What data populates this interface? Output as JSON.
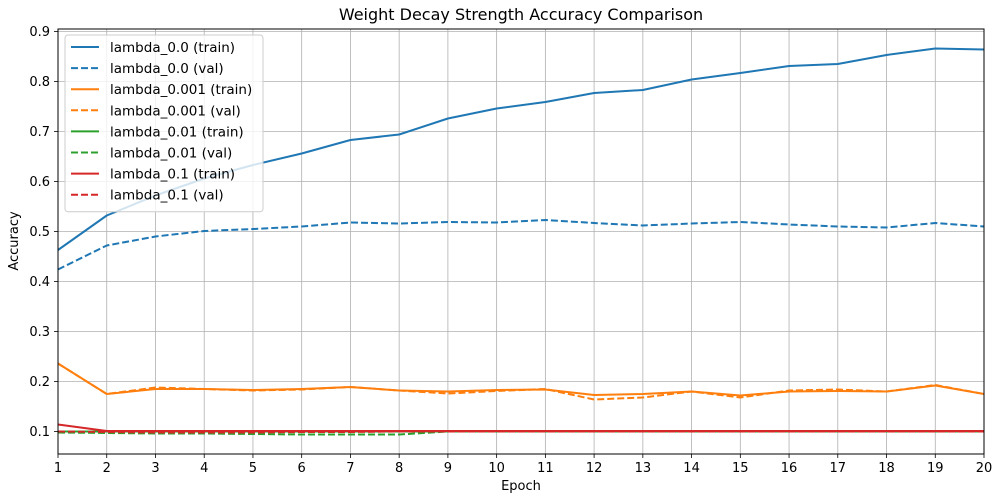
{
  "chart_data": {
    "type": "line",
    "title": "Weight Decay Strength Accuracy Comparison",
    "xlabel": "Epoch",
    "ylabel": "Accuracy",
    "x": [
      1,
      2,
      3,
      4,
      5,
      6,
      7,
      8,
      9,
      10,
      11,
      12,
      13,
      14,
      15,
      16,
      17,
      18,
      19,
      20
    ],
    "xlim": [
      1,
      20
    ],
    "ylim": [
      0.055,
      0.905
    ],
    "xticks": [
      "1",
      "2",
      "3",
      "4",
      "5",
      "6",
      "7",
      "8",
      "9",
      "10",
      "11",
      "12",
      "13",
      "14",
      "15",
      "16",
      "17",
      "18",
      "19",
      "20"
    ],
    "yticks": [
      0.1,
      0.2,
      0.3,
      0.4,
      0.5,
      0.6,
      0.7,
      0.8,
      0.9
    ],
    "grid": true,
    "legend_position": "upper-left",
    "series": [
      {
        "name": "lambda_0.0 (train)",
        "color": "#1f77b4",
        "style": "solid",
        "values": [
          0.463,
          0.532,
          0.572,
          0.606,
          0.633,
          0.656,
          0.683,
          0.694,
          0.726,
          0.746,
          0.759,
          0.777,
          0.783,
          0.804,
          0.817,
          0.831,
          0.835,
          0.853,
          0.866,
          0.864
        ]
      },
      {
        "name": "lambda_0.0 (val)",
        "color": "#1f77b4",
        "style": "dashed",
        "values": [
          0.424,
          0.472,
          0.49,
          0.501,
          0.505,
          0.51,
          0.518,
          0.516,
          0.519,
          0.518,
          0.523,
          0.517,
          0.512,
          0.516,
          0.519,
          0.514,
          0.51,
          0.508,
          0.517,
          0.51
        ]
      },
      {
        "name": "lambda_0.001 (train)",
        "color": "#ff7f0e",
        "style": "solid",
        "values": [
          0.236,
          0.175,
          0.185,
          0.185,
          0.183,
          0.185,
          0.189,
          0.182,
          0.18,
          0.183,
          0.184,
          0.173,
          0.175,
          0.18,
          0.172,
          0.18,
          0.181,
          0.18,
          0.192,
          0.175
        ]
      },
      {
        "name": "lambda_0.001 (val)",
        "color": "#ff7f0e",
        "style": "dashed",
        "values": [
          0.236,
          0.175,
          0.188,
          0.185,
          0.182,
          0.184,
          0.189,
          0.182,
          0.176,
          0.181,
          0.185,
          0.164,
          0.168,
          0.18,
          0.168,
          0.182,
          0.184,
          0.18,
          0.193,
          0.175
        ]
      },
      {
        "name": "lambda_0.01 (train)",
        "color": "#2ca02c",
        "style": "solid",
        "values": [
          0.1,
          0.1,
          0.1,
          0.1,
          0.1,
          0.1,
          0.1,
          0.1,
          0.1,
          0.1,
          0.1,
          0.1,
          0.1,
          0.1,
          0.1,
          0.1,
          0.1,
          0.1,
          0.1,
          0.1
        ]
      },
      {
        "name": "lambda_0.01 (val)",
        "color": "#2ca02c",
        "style": "dashed",
        "values": [
          0.098,
          0.097,
          0.096,
          0.096,
          0.095,
          0.094,
          0.094,
          0.094,
          0.1,
          0.1,
          0.1,
          0.1,
          0.1,
          0.1,
          0.1,
          0.1,
          0.1,
          0.1,
          0.1,
          0.1
        ]
      },
      {
        "name": "lambda_0.1 (train)",
        "color": "#d62728",
        "style": "solid",
        "values": [
          0.114,
          0.101,
          0.101,
          0.101,
          0.101,
          0.101,
          0.101,
          0.101,
          0.101,
          0.101,
          0.101,
          0.101,
          0.101,
          0.101,
          0.101,
          0.101,
          0.101,
          0.101,
          0.101,
          0.101
        ]
      },
      {
        "name": "lambda_0.1 (val)",
        "color": "#d62728",
        "style": "dashed",
        "values": [
          0.1,
          0.099,
          0.098,
          0.098,
          0.098,
          0.099,
          0.099,
          0.1,
          0.1,
          0.1,
          0.1,
          0.1,
          0.1,
          0.1,
          0.1,
          0.1,
          0.1,
          0.1,
          0.1,
          0.1
        ]
      }
    ]
  }
}
